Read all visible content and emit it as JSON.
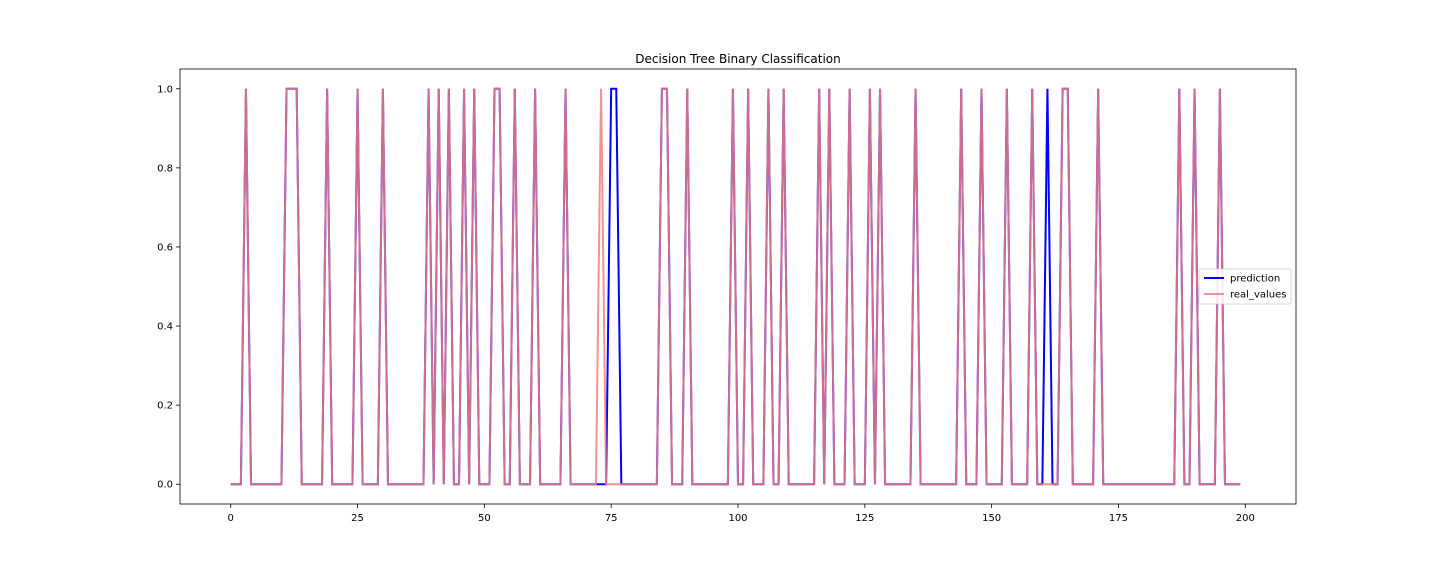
{
  "chart_data": {
    "type": "line",
    "title": "Decision Tree Binary Classification",
    "xlabel": "",
    "ylabel": "",
    "xlim": [
      -10,
      210
    ],
    "ylim": [
      -0.05,
      1.05
    ],
    "xticks": [
      0,
      25,
      50,
      75,
      100,
      125,
      150,
      175,
      200
    ],
    "yticks": [
      0.0,
      0.2,
      0.4,
      0.6,
      0.8,
      1.0
    ],
    "ytick_labels": [
      "0.0",
      "0.2",
      "0.4",
      "0.6",
      "0.8",
      "1.0"
    ],
    "grid": false,
    "legend_position": "center-right",
    "x_start": 0,
    "x_end": 199,
    "series": [
      {
        "name": "prediction",
        "color": "#0000ff",
        "ones_at": [
          3,
          11,
          12,
          13,
          19,
          25,
          30,
          39,
          41,
          43,
          46,
          48,
          52,
          53,
          56,
          60,
          66,
          75,
          76,
          85,
          86,
          90,
          99,
          102,
          106,
          109,
          116,
          118,
          122,
          126,
          128,
          135,
          144,
          148,
          153,
          158,
          161,
          164,
          165,
          171,
          187,
          190,
          195
        ]
      },
      {
        "name": "real_values",
        "color": "#f08080",
        "ones_at": [
          3,
          11,
          12,
          13,
          19,
          25,
          30,
          39,
          41,
          43,
          46,
          48,
          52,
          53,
          56,
          60,
          66,
          73,
          85,
          86,
          90,
          99,
          102,
          106,
          109,
          116,
          118,
          122,
          126,
          128,
          135,
          144,
          148,
          153,
          158,
          164,
          165,
          171,
          187,
          190,
          195
        ]
      }
    ]
  }
}
